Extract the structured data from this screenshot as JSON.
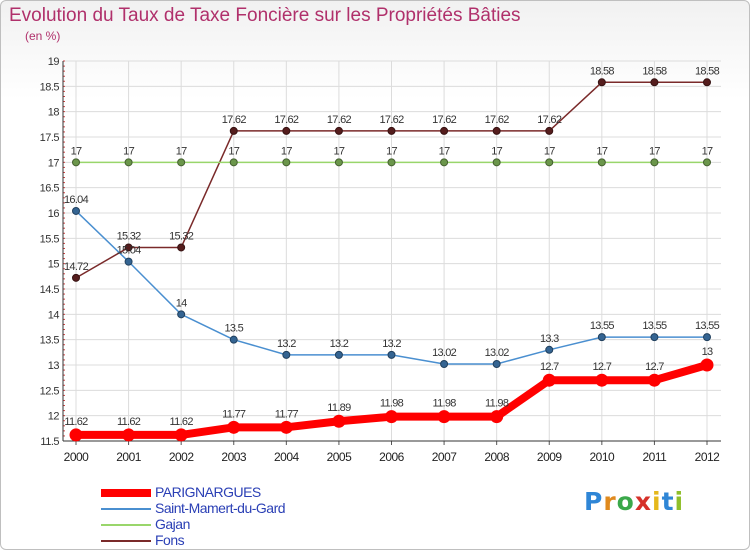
{
  "header": {
    "title": "Evolution du Taux de Taxe Foncière sur les Propriétés Bâties",
    "unit": "(en %)"
  },
  "logo": {
    "letters": [
      "P",
      "r",
      "o",
      "x",
      "i",
      "t",
      "i"
    ],
    "colors": [
      "#2f86d6",
      "#e08a1e",
      "#3aa84a",
      "#d6312a",
      "#e5b81c",
      "#2f86d6",
      "#8fbf2a"
    ]
  },
  "chart_data": {
    "type": "line",
    "x": [
      "2000",
      "2001",
      "2002",
      "2003",
      "2004",
      "2005",
      "2006",
      "2007",
      "2008",
      "2009",
      "2010",
      "2011",
      "2012"
    ],
    "ylim": [
      11.5,
      19
    ],
    "yticks": [
      "11.5",
      "12",
      "12.5",
      "13",
      "13.5",
      "14",
      "14.5",
      "15",
      "15.5",
      "16",
      "16.5",
      "17",
      "17.5",
      "18",
      "18.5",
      "19"
    ],
    "grid": true,
    "legend_position": "bottom-left",
    "series": [
      {
        "name": "PARIGNARGUES",
        "color": "#ff0000",
        "values": [
          11.62,
          11.62,
          11.62,
          11.77,
          11.77,
          11.89,
          11.98,
          11.98,
          11.98,
          12.7,
          12.7,
          12.7,
          13
        ],
        "labels": [
          "11.62",
          "11.62",
          "11.62",
          "11.77",
          "11.77",
          "11.89",
          "11.98",
          "11.98",
          "11.98",
          "12.7",
          "12.7",
          "12.7",
          "13"
        ]
      },
      {
        "name": "Saint-Mamert-du-Gard",
        "color": "#4a8fd0",
        "values": [
          16.04,
          15.04,
          14,
          13.5,
          13.2,
          13.2,
          13.2,
          13.02,
          13.02,
          13.3,
          13.55,
          13.55,
          13.55
        ],
        "labels": [
          "16.04",
          "15.04",
          "14",
          "13.5",
          "13.2",
          "13.2",
          "13.2",
          "13.02",
          "13.02",
          "13.3",
          "13.55",
          "13.55",
          "13.55"
        ]
      },
      {
        "name": "Gajan",
        "color": "#99d66b",
        "values": [
          17,
          17,
          17,
          17,
          17,
          17,
          17,
          17,
          17,
          17,
          17,
          17,
          17
        ],
        "labels": [
          "17",
          "17",
          "17",
          "17",
          "17",
          "17",
          "17",
          "17",
          "17",
          "17",
          "17",
          "17",
          "17"
        ]
      },
      {
        "name": "Fons",
        "color": "#7a2a2a",
        "values": [
          14.72,
          15.32,
          15.32,
          17.62,
          17.62,
          17.62,
          17.62,
          17.62,
          17.62,
          17.62,
          18.58,
          18.58,
          18.58
        ],
        "labels": [
          "14.72",
          "15.32",
          "15.32",
          "17.62",
          "17.62",
          "17.62",
          "17.62",
          "17.62",
          "17.62",
          "17.62",
          "18.58",
          "18.58",
          "18.58"
        ]
      }
    ]
  }
}
